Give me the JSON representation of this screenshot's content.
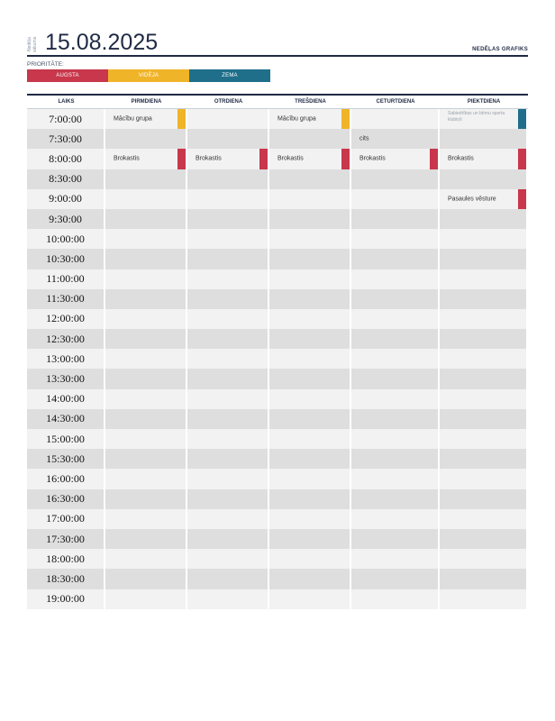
{
  "header": {
    "week_label": "Nedēļa sākums",
    "date": "15.08.2025",
    "title": "NEDĒĻAS GRAFIKS"
  },
  "priority": {
    "label": "PRIORITĀTE:",
    "items": [
      {
        "label": "AUGSTA",
        "color": "#c8374b"
      },
      {
        "label": "VIDĒJA",
        "color": "#f0b429"
      },
      {
        "label": "ZEMA",
        "color": "#1f6f8b"
      }
    ]
  },
  "columns": [
    "LAIKS",
    "PIRMDIENA",
    "OTRDIENA",
    "TREŠDIENA",
    "CETURTDIENA",
    "PIEKTDIENA"
  ],
  "times": [
    "7:00:00",
    "7:30:00",
    "8:00:00",
    "8:30:00",
    "9:00:00",
    "9:30:00",
    "10:00:00",
    "10:30:00",
    "11:00:00",
    "11:30:00",
    "12:00:00",
    "12:30:00",
    "13:00:00",
    "13:30:00",
    "14:00:00",
    "14:30:00",
    "15:00:00",
    "15:30:00",
    "16:00:00",
    "16:30:00",
    "17:00:00",
    "17:30:00",
    "18:00:00",
    "18:30:00",
    "19:00:00"
  ],
  "events": {
    "r0c1": {
      "text": "Mācību grupa",
      "color": "#f0b429"
    },
    "r0c3": {
      "text": "Mācību grupa",
      "color": "#f0b429"
    },
    "r0c5": {
      "text": "Sabiedrības un bērnu sporta klubiņš",
      "color": "#1f6f8b",
      "small": true
    },
    "r1c4": {
      "text": "cits"
    },
    "r2c1": {
      "text": "Brokastis",
      "color": "#c8374b"
    },
    "r2c2": {
      "text": "Brokastis",
      "color": "#c8374b"
    },
    "r2c3": {
      "text": "Brokastis",
      "color": "#c8374b"
    },
    "r2c4": {
      "text": "Brokastis",
      "color": "#c8374b"
    },
    "r2c5": {
      "text": "Brokastis",
      "color": "#c8374b"
    },
    "r4c5": {
      "text": "Pasaules vēsture",
      "color": "#c8374b"
    }
  },
  "colors": {
    "row_even": "#f2f2f2",
    "row_odd": "#dedede",
    "navy": "#1f2a44"
  }
}
